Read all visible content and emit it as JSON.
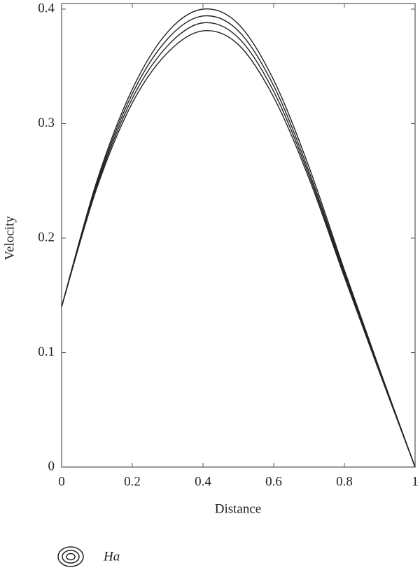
{
  "chart_data": {
    "type": "line",
    "x_label": "Distance",
    "y_label": "Velocity",
    "legend_title": "Ha",
    "x": [
      0,
      0.1,
      0.2,
      0.3,
      0.4,
      0.5,
      0.6,
      0.7,
      0.8,
      0.9,
      1
    ],
    "series": [
      {
        "color": "#222222",
        "values": [
          0.14,
          0.25,
          0.33,
          0.38,
          0.4,
          0.387,
          0.338,
          0.262,
          0.172,
          0.085,
          0
        ]
      },
      {
        "color": "#222222",
        "values": [
          0.14,
          0.248,
          0.326,
          0.374,
          0.394,
          0.381,
          0.333,
          0.258,
          0.17,
          0.084,
          0
        ]
      },
      {
        "color": "#222222",
        "values": [
          0.14,
          0.246,
          0.322,
          0.368,
          0.388,
          0.375,
          0.328,
          0.255,
          0.168,
          0.083,
          0
        ]
      },
      {
        "color": "#222222",
        "values": [
          0.14,
          0.244,
          0.318,
          0.362,
          0.381,
          0.369,
          0.323,
          0.252,
          0.166,
          0.082,
          0
        ]
      }
    ],
    "xlim": [
      0,
      1
    ],
    "xticks": [
      0,
      0.2,
      0.4,
      0.6,
      0.8,
      1
    ],
    "ylim": [
      0,
      0.4
    ],
    "yticks": [
      0,
      0.1,
      0.2,
      0.3,
      0.4
    ]
  }
}
